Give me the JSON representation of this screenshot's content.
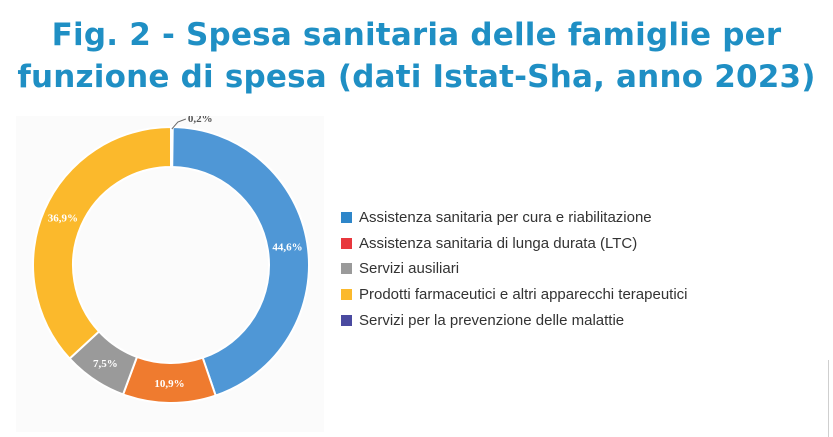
{
  "title_lines": [
    "Fig. 2 - Spesa sanitaria delle famiglie per",
    "funzione di spesa (dati Istat-Sha, anno 2023)"
  ],
  "chart_data": {
    "type": "pie",
    "categories": [
      "Assistenza sanitaria per cura e riabilitazione",
      "Assistenza sanitaria di lunga durata (LTC)",
      "Servizi ausiliari",
      "Prodotti farmaceutici e altri apparecchi terapeutici",
      "Servizi per la prevenzione delle malattie"
    ],
    "values": [
      44.6,
      10.9,
      7.5,
      36.9,
      0.2
    ],
    "labels": [
      "44,6%",
      "10,9%",
      "7,5%",
      "36,9%",
      "0,2%"
    ],
    "colors": [
      "#4f97d6",
      "#ef7b2f",
      "#9a9a9a",
      "#fbb92c",
      "#3f4a9e"
    ],
    "legend_colors": [
      "#2e86c9",
      "#e8373d",
      "#9a9a9a",
      "#fbb92c",
      "#4a4aa0"
    ],
    "order": [
      0,
      1,
      2,
      3,
      4
    ],
    "legend_position": "right"
  }
}
